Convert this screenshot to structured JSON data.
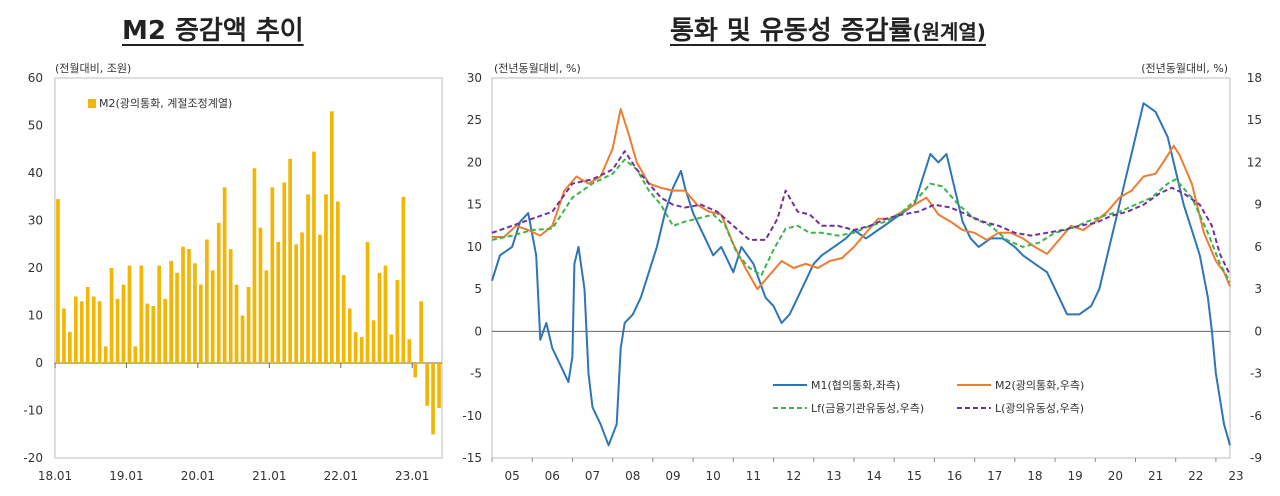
{
  "titles": {
    "left": "M2 증감액 추이",
    "right_main": "통화 및 유동성 증감률",
    "right_suffix": "(원계열)"
  },
  "chart_data": [
    {
      "type": "bar",
      "unit_label": "(전월대비, 조원)",
      "legend": "M2(광의통화, 계절조정계열)",
      "ylim": [
        -20,
        60
      ],
      "yticks": [
        -20,
        -10,
        0,
        10,
        20,
        30,
        40,
        50,
        60
      ],
      "xticks": [
        "18.01",
        "19.01",
        "20.01",
        "21.01",
        "22.01",
        "23.01"
      ],
      "color": "#F2B705",
      "series": [
        {
          "name": "M2(광의통화, 계절조정계열)",
          "values": [
            34.5,
            11.5,
            6.5,
            14,
            13,
            16,
            14,
            13,
            3.5,
            20,
            13.5,
            16.5,
            20.5,
            3.5,
            20.5,
            12.5,
            12,
            20.5,
            13.5,
            21.5,
            19,
            24.5,
            24,
            21,
            16.5,
            26,
            19.5,
            29.5,
            37,
            24,
            16.5,
            10,
            16,
            41,
            28.5,
            19.5,
            37,
            25.5,
            38,
            43,
            25,
            27.5,
            35.5,
            44.5,
            27,
            35.5,
            53,
            34,
            18.5,
            11.5,
            6.5,
            5.5,
            25.5,
            9,
            19,
            20.5,
            6,
            17.5,
            35,
            5,
            -3,
            13,
            -9,
            -15,
            -9.5
          ]
        }
      ]
    },
    {
      "type": "line",
      "left_unit_label": "(전년동월대비, %)",
      "right_unit_label": "(전년동월대비, %)",
      "ylim_left": [
        -15,
        30
      ],
      "ylim_right": [
        -9,
        18
      ],
      "yticks_left": [
        -15,
        -10,
        -5,
        0,
        5,
        10,
        15,
        20,
        25,
        30
      ],
      "yticks_right": [
        -9,
        -6,
        -3,
        0,
        3,
        6,
        9,
        12,
        15,
        18
      ],
      "xticks": [
        "05",
        "06",
        "07",
        "08",
        "09",
        "10",
        "11",
        "12",
        "13",
        "14",
        "15",
        "16",
        "17",
        "18",
        "19",
        "20",
        "21",
        "22",
        "23"
      ],
      "x_start": 2005.0,
      "x_end": 2023.35,
      "series": [
        {
          "name": "M1(협의통화,좌측)",
          "axis": "left",
          "color": "#2E75B6",
          "style": "solid",
          "x": [
            2005.0,
            2005.2,
            2005.5,
            2005.7,
            2005.9,
            2006.1,
            2006.2,
            2006.35,
            2006.5,
            2006.7,
            2006.9,
            2007.0,
            2007.05,
            2007.15,
            2007.3,
            2007.4,
            2007.5,
            2007.7,
            2007.9,
            2008.1,
            2008.2,
            2008.3,
            2008.5,
            2008.7,
            2008.9,
            2009.1,
            2009.3,
            2009.5,
            2009.7,
            2009.8,
            2010.0,
            2010.3,
            2010.5,
            2010.7,
            2011.0,
            2011.2,
            2011.5,
            2011.8,
            2012.0,
            2012.2,
            2012.4,
            2012.6,
            2012.8,
            2013.0,
            2013.2,
            2013.5,
            2013.8,
            2014.0,
            2014.3,
            2014.6,
            2014.9,
            2015.2,
            2015.5,
            2015.7,
            2015.9,
            2016.1,
            2016.3,
            2016.5,
            2016.7,
            2016.9,
            2017.1,
            2017.4,
            2017.7,
            2018.0,
            2018.2,
            2018.5,
            2018.8,
            2019.0,
            2019.3,
            2019.6,
            2019.9,
            2020.1,
            2020.3,
            2020.5,
            2020.7,
            2020.9,
            2021.0,
            2021.2,
            2021.5,
            2021.8,
            2022.0,
            2022.2,
            2022.4,
            2022.6,
            2022.8,
            2022.9,
            2023.0,
            2023.2,
            2023.35
          ],
          "y": [
            6,
            9,
            10,
            13,
            14,
            9,
            -1,
            1,
            -2,
            -4,
            -6,
            -3,
            8,
            10,
            5,
            -5,
            -9,
            -11,
            -13.5,
            -11,
            -2,
            1,
            2,
            4,
            7,
            10,
            14,
            17,
            19,
            17,
            14,
            11,
            9,
            10,
            7,
            10,
            8,
            4,
            3,
            1,
            2,
            4,
            6,
            8,
            9,
            10,
            11,
            12,
            11,
            12,
            13,
            14,
            15,
            18,
            21,
            20,
            21,
            17,
            13,
            11,
            10,
            11,
            11,
            10,
            9,
            8,
            7,
            5,
            2,
            2,
            3,
            5,
            9,
            13,
            17,
            21,
            23,
            27,
            26,
            23,
            19,
            15,
            12,
            9,
            4,
            0,
            -5,
            -11,
            -13.5
          ]
        },
        {
          "name": "M2(광의통화,우측)",
          "axis": "right",
          "color": "#ED7D31",
          "style": "solid",
          "x": [
            2005.0,
            2005.3,
            2005.6,
            2005.9,
            2006.2,
            2006.5,
            2006.8,
            2007.1,
            2007.4,
            2007.7,
            2008.0,
            2008.2,
            2008.4,
            2008.6,
            2008.9,
            2009.2,
            2009.5,
            2009.8,
            2010.1,
            2010.4,
            2010.7,
            2011.0,
            2011.3,
            2011.6,
            2011.9,
            2012.2,
            2012.5,
            2012.8,
            2013.1,
            2013.4,
            2013.7,
            2014.0,
            2014.3,
            2014.6,
            2014.9,
            2015.2,
            2015.5,
            2015.8,
            2016.1,
            2016.4,
            2016.7,
            2017.0,
            2017.3,
            2017.6,
            2017.9,
            2018.2,
            2018.5,
            2018.8,
            2019.1,
            2019.4,
            2019.7,
            2020.0,
            2020.3,
            2020.6,
            2020.9,
            2021.2,
            2021.5,
            2021.8,
            2021.95,
            2022.1,
            2022.4,
            2022.7,
            2023.0,
            2023.2,
            2023.35
          ],
          "y": [
            6.7,
            6.7,
            7.5,
            7.2,
            6.8,
            7.5,
            10,
            11,
            10.5,
            11,
            13,
            15.8,
            14,
            12,
            10.5,
            10.2,
            10,
            10,
            9,
            8.5,
            8.3,
            6.2,
            4.5,
            3,
            4,
            5,
            4.5,
            4.8,
            4.5,
            5,
            5.2,
            6,
            7,
            8,
            8,
            8.5,
            9,
            9.5,
            8.3,
            7.8,
            7.2,
            7,
            6.5,
            7,
            7,
            6.6,
            6,
            5.5,
            6.5,
            7.5,
            7.2,
            7.8,
            8.5,
            9.5,
            10,
            11,
            11.2,
            12.5,
            13.2,
            12.5,
            10.5,
            7,
            5,
            4.2,
            3.2
          ]
        },
        {
          "name": "Lf(금융기관유동성,우측)",
          "axis": "right",
          "color": "#3DB54A",
          "style": "dashed",
          "x": [
            2005.0,
            2005.5,
            2006.0,
            2006.5,
            2007.0,
            2007.5,
            2008.0,
            2008.3,
            2008.6,
            2008.9,
            2009.2,
            2009.5,
            2009.8,
            2010.1,
            2010.5,
            2010.8,
            2011.1,
            2011.4,
            2011.7,
            2012.0,
            2012.3,
            2012.6,
            2012.9,
            2013.2,
            2013.6,
            2014.0,
            2014.4,
            2014.8,
            2015.2,
            2015.6,
            2015.9,
            2016.2,
            2016.6,
            2017.0,
            2017.4,
            2017.8,
            2018.2,
            2018.6,
            2019.0,
            2019.4,
            2019.8,
            2020.2,
            2020.6,
            2021.0,
            2021.4,
            2021.8,
            2022.0,
            2022.4,
            2022.8,
            2023.1,
            2023.35
          ],
          "y": [
            6.5,
            6.8,
            7.2,
            7.3,
            9.5,
            10.5,
            11.2,
            12.2,
            11.5,
            10,
            9,
            7.5,
            7.8,
            8,
            8.3,
            7.5,
            5.5,
            4.5,
            4,
            5.8,
            7.3,
            7.5,
            7,
            7,
            6.8,
            7,
            7.5,
            7.8,
            8.5,
            9.5,
            10.5,
            10.3,
            9,
            8,
            7.5,
            6.5,
            6,
            6.3,
            7,
            7.3,
            7.8,
            8.2,
            8.5,
            9,
            9.5,
            10.5,
            10.8,
            9.5,
            7,
            4.8,
            3.5
          ]
        },
        {
          "name": "L(광의유동성,우측)",
          "axis": "right",
          "color": "#7030A0",
          "style": "dashed",
          "x": [
            2005.0,
            2005.5,
            2006.0,
            2006.5,
            2007.0,
            2007.5,
            2008.0,
            2008.3,
            2008.6,
            2008.9,
            2009.2,
            2009.5,
            2009.8,
            2010.2,
            2010.6,
            2011.0,
            2011.4,
            2011.8,
            2012.1,
            2012.3,
            2012.6,
            2012.9,
            2013.2,
            2013.6,
            2014.0,
            2014.4,
            2014.8,
            2015.2,
            2015.6,
            2016.0,
            2016.4,
            2016.8,
            2017.2,
            2017.6,
            2018.0,
            2018.4,
            2018.8,
            2019.2,
            2019.6,
            2020.0,
            2020.4,
            2020.8,
            2021.2,
            2021.6,
            2021.9,
            2022.2,
            2022.6,
            2022.9,
            2023.1,
            2023.35
          ],
          "y": [
            7,
            7.5,
            8,
            8.5,
            10.5,
            10.8,
            11.5,
            12.8,
            11.5,
            10.5,
            9.5,
            9,
            8.8,
            9,
            8.5,
            7.5,
            6.5,
            6.5,
            8,
            10,
            8.5,
            8.3,
            7.5,
            7.5,
            7.2,
            7.5,
            8,
            8.3,
            8.5,
            9,
            8.8,
            8.3,
            7.8,
            7.5,
            7,
            6.8,
            7,
            7.2,
            7.5,
            7.7,
            8.2,
            8.5,
            9,
            9.8,
            10.2,
            9.8,
            9,
            7.5,
            5.5,
            4
          ]
        }
      ]
    }
  ]
}
